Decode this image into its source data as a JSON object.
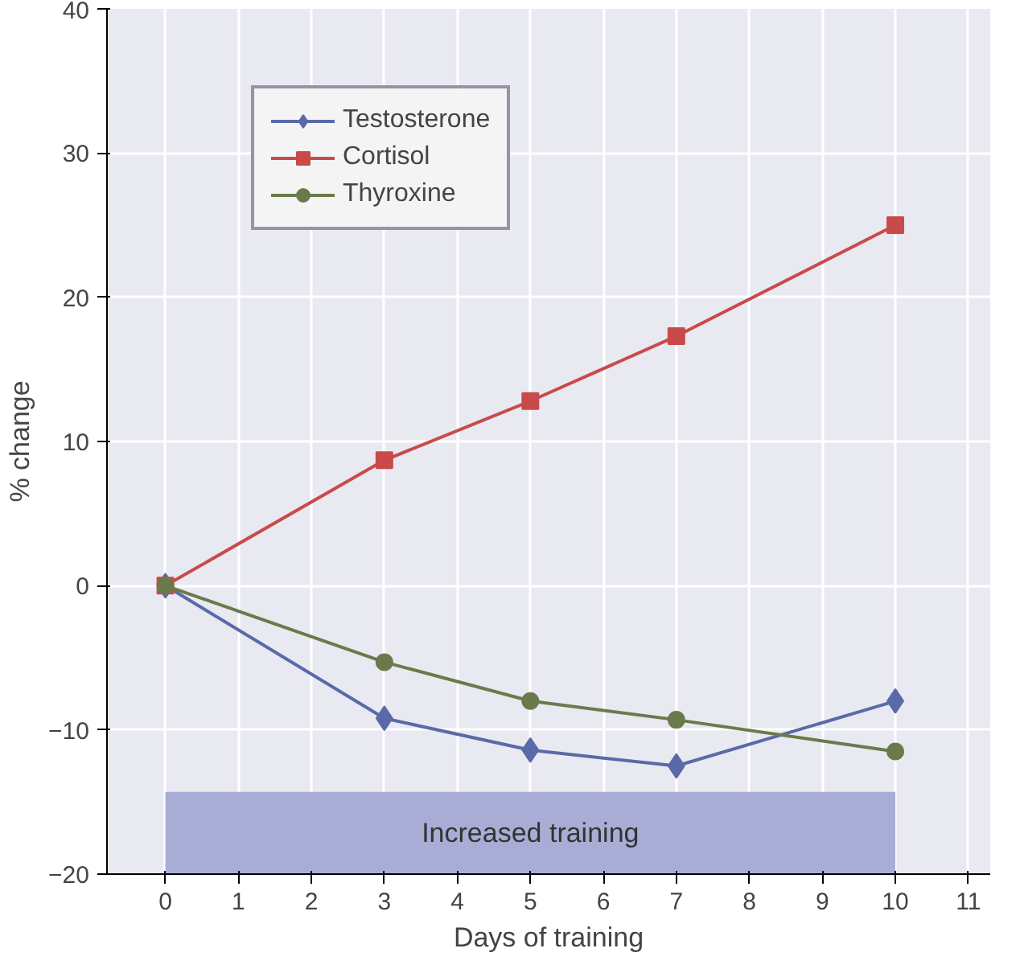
{
  "chart_data": {
    "type": "line",
    "xlabel": "Days of training",
    "ylabel": "% change",
    "xlim": [
      -0.8,
      11.3
    ],
    "ylim": [
      -20,
      40
    ],
    "xticks": [
      0,
      1,
      2,
      3,
      4,
      5,
      6,
      7,
      8,
      9,
      10,
      11
    ],
    "yticks": [
      {
        "value": -20,
        "label": "−20"
      },
      {
        "value": -10,
        "label": "−10"
      },
      0,
      10,
      20,
      30,
      40
    ],
    "x": [
      0,
      3,
      5,
      7,
      10
    ],
    "series": [
      {
        "name": "Testosterone",
        "color": "#5a6aa8",
        "marker": "diamond",
        "values": [
          0,
          -9.2,
          -11.4,
          -12.5,
          -8
        ]
      },
      {
        "name": "Cortisol",
        "color": "#c94a4a",
        "marker": "square",
        "values": [
          0,
          8.7,
          12.8,
          17.3,
          25
        ]
      },
      {
        "name": "Thyroxine",
        "color": "#6b7a4a",
        "marker": "circle",
        "values": [
          0,
          -5.3,
          -8,
          -9.3,
          -11.5
        ]
      }
    ],
    "bands": [
      {
        "axis": "x",
        "from": 0,
        "to": 10,
        "label": "Increased training",
        "color": "#a9add6"
      }
    ],
    "grid": true,
    "legend": "top left",
    "line_style": "solid"
  }
}
